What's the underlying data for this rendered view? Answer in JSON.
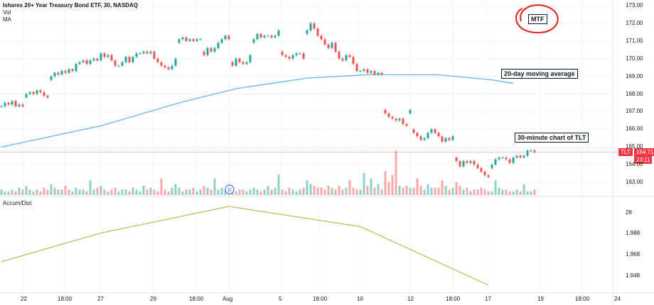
{
  "header": {
    "title": "Ishares 20+ Year Treasury Bond ETF, 30, NASDAQ",
    "indicators": [
      "Vol",
      "MA"
    ]
  },
  "annotations": {
    "mtf": "MTF",
    "ma": "20-day moving average",
    "chart": "30-minute chart of TLT"
  },
  "colors": {
    "up": "#26a69a",
    "down": "#ef5350",
    "ma": "#64b5f6",
    "ad": "#b5bd5a",
    "last": "#f23645",
    "circle": "#e0201f"
  },
  "price_axis": {
    "ticks": [
      "173.00",
      "172.00",
      "171.00",
      "170.00",
      "169.00",
      "168.00",
      "167.00",
      "166.00",
      "165.00",
      "164.00",
      "163.00"
    ]
  },
  "last_price": {
    "symbol": "TLT",
    "value": "164.71",
    "countdown": "23:11"
  },
  "time_axis": {
    "labels": [
      "22",
      "18:00",
      "27",
      "29",
      "18:00",
      "Aug",
      "5",
      "18:00",
      "10",
      "12",
      "18:00",
      "17",
      "19",
      "18:00",
      "24"
    ]
  },
  "event_marker": "D",
  "accum_dist": {
    "title": "Accum/Dist",
    "ticks": [
      "28",
      "1.988",
      "1.968",
      "1.948"
    ]
  },
  "chart_data": {
    "type": "candlestick",
    "ylim": [
      162.5,
      173.3
    ],
    "closes": [
      167.3,
      167.5,
      167.4,
      167.6,
      167.3,
      167.4,
      167.3,
      168.0,
      168.1,
      168.0,
      168.2,
      168.1,
      167.9,
      167.8,
      169.0,
      169.2,
      169.1,
      169.3,
      169.2,
      169.4,
      169.3,
      169.7,
      169.8,
      169.9,
      169.7,
      169.9,
      170.0,
      169.9,
      170.3,
      170.1,
      170.2,
      169.9,
      169.6,
      169.6,
      169.8,
      170.1,
      169.8,
      170.1,
      170.3,
      170.3,
      170.4,
      170.3,
      170.4,
      170.0,
      169.8,
      169.6,
      169.5,
      169.4,
      169.6,
      170.0,
      171.1,
      171.2,
      171.0,
      171.1,
      171.0,
      171.1,
      171.1,
      170.2,
      170.6,
      170.4,
      170.6,
      170.9,
      171.1,
      171.3,
      171.1,
      169.6,
      170.0,
      169.8,
      169.7,
      169.8,
      170.2,
      171.1,
      171.4,
      171.2,
      171.3,
      171.3,
      171.2,
      171.3,
      171.6,
      170.2,
      170.1,
      170.0,
      170.2,
      170.3,
      170.3,
      170.0,
      171.6,
      172.0,
      171.7,
      171.3,
      171.1,
      170.8,
      170.6,
      170.9,
      170.4,
      170.0,
      169.9,
      170.2,
      170.1,
      169.7,
      169.3,
      169.3,
      169.4,
      169.2,
      169.3,
      169.1,
      169.2,
      169.1,
      166.9,
      166.7,
      166.6,
      166.5,
      166.6,
      166.3,
      166.2,
      167.1,
      165.8,
      165.6,
      165.4,
      165.5,
      165.8,
      166.0,
      165.8,
      165.6,
      165.3,
      165.5,
      165.4,
      165.6,
      164.2,
      163.9,
      164.2,
      164.1,
      164.2,
      164.0,
      163.8,
      163.6,
      163.4,
      163.3,
      164.0,
      164.3,
      164.4,
      164.4,
      164.3,
      164.1,
      164.4,
      164.5,
      164.4,
      164.5,
      164.8,
      164.8,
      164.71
    ],
    "volumes": [
      3,
      2,
      2,
      3,
      2,
      4,
      3,
      5,
      3,
      2,
      3,
      2,
      4,
      3,
      6,
      4,
      3,
      3,
      5,
      3,
      2,
      4,
      3,
      3,
      2,
      8,
      3,
      4,
      5,
      3,
      2,
      3,
      4,
      2,
      3,
      3,
      2,
      4,
      3,
      2,
      5,
      3,
      4,
      3,
      2,
      9,
      3,
      2,
      4,
      6,
      4,
      2,
      3,
      3,
      4,
      2,
      3,
      5,
      4,
      3,
      9,
      3,
      4,
      3,
      6,
      4,
      2,
      3,
      3,
      2,
      3,
      4,
      3,
      2,
      3,
      5,
      3,
      4,
      11,
      3,
      2,
      4,
      3,
      2,
      3,
      4,
      8,
      6,
      5,
      4,
      4,
      3,
      5,
      4,
      3,
      5,
      3,
      4,
      8,
      4,
      3,
      3,
      12,
      5,
      9,
      4,
      6,
      3,
      13,
      7,
      11,
      24,
      5,
      4,
      5,
      4,
      4,
      9,
      5,
      3,
      6,
      4,
      4,
      4,
      8,
      5,
      3,
      4,
      7,
      5,
      3,
      4,
      2,
      3,
      3,
      4,
      3,
      2,
      2,
      8,
      4,
      3,
      3,
      2,
      2,
      3,
      2,
      6,
      2,
      2,
      3
    ],
    "ma": [
      {
        "i": 0,
        "v": 165.0
      },
      {
        "i": 28,
        "v": 166.2
      },
      {
        "i": 50,
        "v": 167.5
      },
      {
        "i": 66,
        "v": 168.3
      },
      {
        "i": 86,
        "v": 168.9
      },
      {
        "i": 104,
        "v": 169.1
      },
      {
        "i": 122,
        "v": 169.1
      },
      {
        "i": 138,
        "v": 168.8
      },
      {
        "i": 144,
        "v": 168.6
      }
    ],
    "accum_dist": [
      {
        "i": 0,
        "v": 1.962
      },
      {
        "i": 28,
        "v": 1.989
      },
      {
        "i": 64,
        "v": 2.014
      },
      {
        "i": 101,
        "v": 1.995
      },
      {
        "i": 137,
        "v": 1.94
      }
    ]
  }
}
